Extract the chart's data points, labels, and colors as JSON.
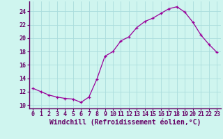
{
  "x": [
    0,
    1,
    2,
    3,
    4,
    5,
    6,
    7,
    8,
    9,
    10,
    11,
    12,
    13,
    14,
    15,
    16,
    17,
    18,
    19,
    20,
    21,
    22,
    23
  ],
  "y": [
    12.5,
    12.0,
    11.5,
    11.2,
    11.0,
    10.9,
    10.4,
    11.2,
    13.9,
    17.3,
    18.0,
    19.6,
    20.2,
    21.6,
    22.5,
    23.0,
    23.7,
    24.4,
    24.7,
    23.9,
    22.4,
    20.5,
    19.1,
    17.9
  ],
  "line_color": "#990099",
  "marker": "+",
  "marker_size": 3,
  "bg_color": "#cff5ef",
  "grid_color": "#aadddd",
  "ylabel_ticks": [
    10,
    12,
    14,
    16,
    18,
    20,
    22,
    24
  ],
  "ylim": [
    9.5,
    25.5
  ],
  "xlim": [
    -0.5,
    23.5
  ],
  "xlabel": "Windchill (Refroidissement éolien,°C)",
  "line_color2": "#880088",
  "axis_color": "#660066",
  "tick_color": "#660066",
  "label_fontsize": 7,
  "tick_fontsize": 6,
  "xlabel_fontsize": 7
}
